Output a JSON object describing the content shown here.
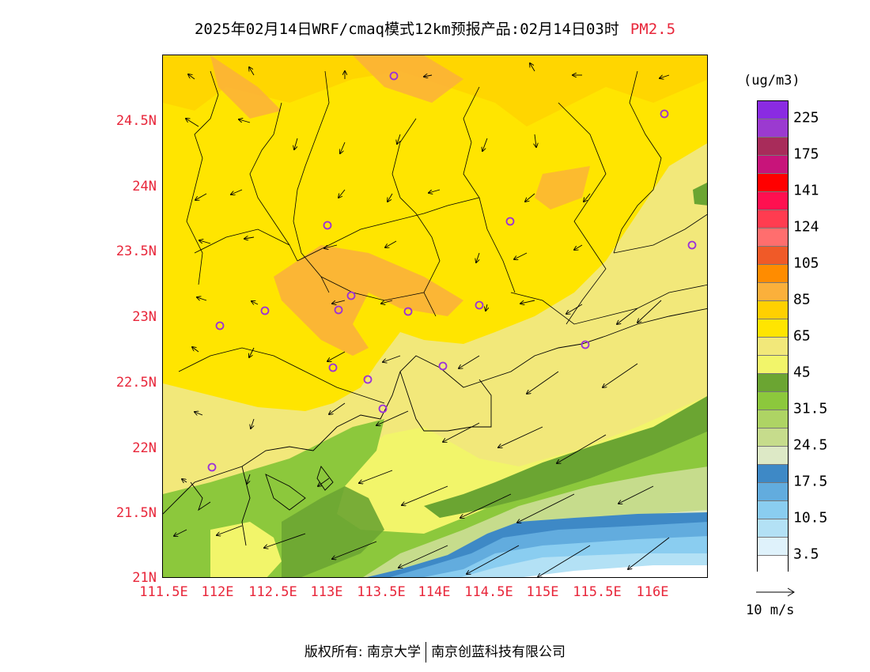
{
  "title": {
    "text": "2025年02月14日WRF/cmaq模式12km预报产品:02月14日03时",
    "pollutant": "PM2.5",
    "pollutant_color": "#e8263a"
  },
  "map": {
    "lat_labels": [
      "24.5N",
      "24N",
      "23.5N",
      "23N",
      "22.5N",
      "22N",
      "21.5N",
      "21N"
    ],
    "lon_labels": [
      "111.5E",
      "112E",
      "112.5E",
      "113E",
      "113.5E",
      "114E",
      "114.5E",
      "115E",
      "115.5E",
      "116E"
    ]
  },
  "colorbar": {
    "unit": "(ug/m3)",
    "colors": [
      "#ffffff",
      "#dff2fb",
      "#b3e1f5",
      "#8acdf0",
      "#62acde",
      "#3e89c6",
      "#dde9c6",
      "#c6dc8c",
      "#aed464",
      "#8cc83c",
      "#6ba532",
      "#f2f56a",
      "#f2e87a",
      "#ffe500",
      "#ffd000",
      "#fbb03b",
      "#ff8c00",
      "#f05a28",
      "#ff6e6e",
      "#ff3c50",
      "#ff1050",
      "#ff0000",
      "#c8147a",
      "#a82c5a",
      "#9b3ad0",
      "#8a2be2"
    ],
    "labels": [
      "3.5",
      "10.5",
      "17.5",
      "24.5",
      "31.5",
      "45",
      "65",
      "85",
      "105",
      "124",
      "141",
      "175",
      "225"
    ]
  },
  "vector_legend": {
    "label": "10 m/s"
  },
  "monitor_station_color": "#9b30d9",
  "footer": {
    "copyright": "版权所有: 南京大学",
    "company": "南京创蓝科技有限公司"
  }
}
